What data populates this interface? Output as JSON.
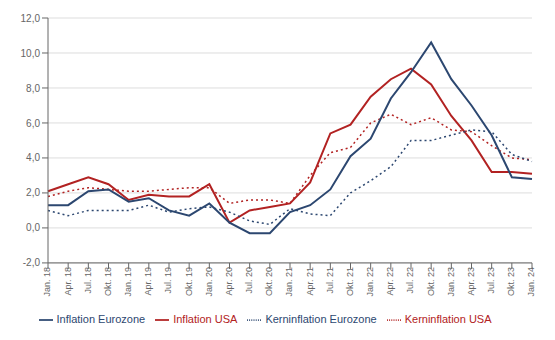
{
  "chart_data": {
    "type": "line",
    "categories": [
      "Jan. 18",
      "Apr. 18",
      "Jul. 18",
      "Okt. 18",
      "Jan. 19",
      "Apr. 19",
      "Jul. 19",
      "Okt. 19",
      "Jan. 20",
      "Apr. 20",
      "Jul. 20",
      "Okt. 20",
      "Jan. 21",
      "Apr. 21",
      "Jul. 21",
      "Okt. 21",
      "Jan. 22",
      "Apr. 22",
      "Jul. 22",
      "Okt. 22",
      "Jan. 23",
      "Apr. 23",
      "Jul. 23",
      "Okt. 23",
      "Jan. 24"
    ],
    "series": [
      {
        "name": "Inflation USA",
        "color": "#b22222",
        "line_style": "solid",
        "values": [
          2.1,
          2.5,
          2.9,
          2.5,
          1.6,
          1.9,
          1.8,
          1.8,
          2.5,
          0.3,
          1.0,
          1.2,
          1.4,
          2.6,
          5.4,
          5.9,
          7.5,
          8.5,
          9.1,
          8.2,
          6.4,
          5.0,
          3.2,
          3.2,
          3.1
        ]
      },
      {
        "name": "Kerninflation USA",
        "color": "#b22222",
        "line_style": "dotted",
        "values": [
          1.8,
          2.1,
          2.3,
          2.2,
          2.1,
          2.1,
          2.2,
          2.3,
          2.3,
          1.4,
          1.6,
          1.6,
          1.4,
          3.0,
          4.3,
          4.6,
          6.0,
          6.5,
          5.9,
          6.3,
          5.6,
          5.5,
          4.7,
          4.0,
          3.9
        ]
      },
      {
        "name": "Inflation Eurozone",
        "color": "#2c4770",
        "line_style": "solid",
        "values": [
          1.3,
          1.3,
          2.1,
          2.2,
          1.5,
          1.7,
          1.0,
          0.7,
          1.4,
          0.3,
          -0.3,
          -0.3,
          0.9,
          1.3,
          2.2,
          4.1,
          5.1,
          7.4,
          8.9,
          10.6,
          8.5,
          7.0,
          5.3,
          2.9,
          2.8
        ]
      },
      {
        "name": "Kerninflation Eurozone",
        "color": "#2c4770",
        "line_style": "dotted",
        "values": [
          1.0,
          0.7,
          1.0,
          1.0,
          1.0,
          1.3,
          0.9,
          1.1,
          1.2,
          0.9,
          0.4,
          0.2,
          1.1,
          0.8,
          0.7,
          2.0,
          2.7,
          3.5,
          5.0,
          5.0,
          5.3,
          5.6,
          5.5,
          4.2,
          3.8
        ]
      }
    ],
    "ylim": [
      -2.0,
      12.0
    ],
    "yticks": [
      {
        "value": -2.0,
        "label": "-2,0"
      },
      {
        "value": 0.0,
        "label": "0,0"
      },
      {
        "value": 2.0,
        "label": "2,0"
      },
      {
        "value": 4.0,
        "label": "4,0"
      },
      {
        "value": 6.0,
        "label": "6,0"
      },
      {
        "value": 8.0,
        "label": "8,0"
      },
      {
        "value": 10.0,
        "label": "10,0"
      },
      {
        "value": 12.0,
        "label": "12,0"
      }
    ],
    "grid": "y",
    "legend": "bottom"
  }
}
